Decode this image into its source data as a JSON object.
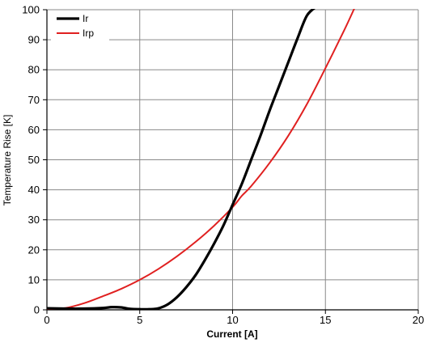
{
  "chart_data": {
    "type": "line",
    "title": "",
    "xlabel": "Current [A]",
    "ylabel": "Temperature Rise [K]",
    "xlim": [
      0,
      20
    ],
    "ylim": [
      0,
      100
    ],
    "xticks": [
      "0",
      "5",
      "10",
      "15",
      "20"
    ],
    "yticks": [
      "0",
      "10",
      "20",
      "30",
      "40",
      "50",
      "60",
      "70",
      "80",
      "90",
      "100"
    ],
    "grid": true,
    "legend_position": "top-left",
    "series": [
      {
        "name": "Ir",
        "color": "#000000",
        "x": [
          0,
          1,
          2,
          3,
          3.5,
          4,
          4.5,
          5,
          5.5,
          6,
          6.5,
          7,
          7.5,
          8,
          8.5,
          9,
          9.5,
          10,
          10.5,
          11,
          11.5,
          12,
          12.5,
          13,
          13.5,
          14,
          14.5
        ],
        "y": [
          0.5,
          0.4,
          0.4,
          0.6,
          0.9,
          0.8,
          0.3,
          0.2,
          0.2,
          0.5,
          1.8,
          4.2,
          7.5,
          11.5,
          16.5,
          22,
          28,
          35,
          42,
          50,
          58,
          66.5,
          74.5,
          82.5,
          90.5,
          98,
          101
        ]
      },
      {
        "name": "Irp",
        "color": "#e02020",
        "x": [
          0,
          1,
          2,
          3,
          4,
          5,
          6,
          7,
          8,
          9,
          10,
          10.5,
          11,
          12,
          13,
          14,
          15,
          16,
          16.6
        ],
        "y": [
          0.2,
          0.6,
          2.2,
          4.5,
          7,
          10,
          13.6,
          17.8,
          22.6,
          28,
          34.2,
          38,
          41.2,
          49,
          58,
          68.5,
          80.5,
          93,
          101
        ]
      }
    ]
  }
}
